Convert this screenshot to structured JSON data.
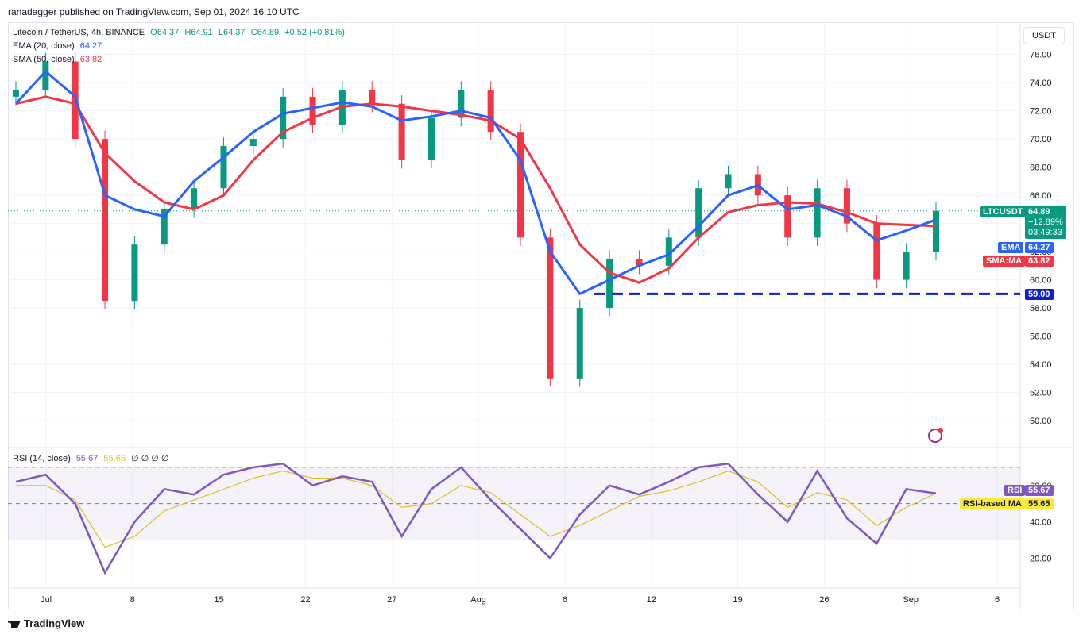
{
  "publisher": "ranadagger published on TradingView.com, Sep 01, 2024 16:10 UTC",
  "legend": {
    "symbol": "Litecoin / TetherUS, 4h, BINANCE",
    "open": "O64.37",
    "high": "H64.91",
    "low": "L64.37",
    "close": "C64.89",
    "change": "+0.52 (+0.81%)",
    "ema_label": "EMA (20, close)",
    "ema_value": "64.27",
    "sma_label": "SMA (50, close)",
    "sma_value": "63.82",
    "rsi_label": "RSI (14, close)",
    "rsi_value": "55.67",
    "rsi_ma_value": "55.65",
    "rsi_extra": "∅ ∅ ∅ ∅"
  },
  "currency": "USDT",
  "tags": {
    "symbol": "LTCUSDT",
    "price": "64.89",
    "pct": "−12.89%",
    "countdown": "03:49:33",
    "ema": "EMA",
    "ema_val": "64.27",
    "sma": "SMA:MA",
    "sma_val": "63.82",
    "support": "59.00",
    "rsi": "RSI",
    "rsi_val": "55.67",
    "rsi_ma": "RSI-based MA",
    "rsi_ma_val": "55.65"
  },
  "footer": "TradingView",
  "colors": {
    "up": "#089981",
    "down": "#f23645",
    "ema": "#2962ff",
    "sma": "#f23645",
    "rsi": "#7e57c2",
    "rsi_ma": "#e0c020",
    "support": "#0a1fd6"
  },
  "chart_data": [
    {
      "type": "line",
      "title": "Litecoin / TetherUS, 4h, BINANCE",
      "x_ticks": [
        "Jul",
        "8",
        "15",
        "22",
        "27",
        "Aug",
        "6",
        "12",
        "19",
        "26",
        "Sep",
        "6"
      ],
      "y_ticks": [
        "50.00",
        "52.00",
        "54.00",
        "56.00",
        "58.00",
        "60.00",
        "62.00",
        "64.00",
        "66.00",
        "68.00",
        "70.00",
        "72.00",
        "74.00",
        "76.00"
      ],
      "ylim": [
        48.2,
        77.5
      ],
      "x": [
        "Jul 1",
        "Jul 3",
        "Jul 5",
        "Jul 6",
        "Jul 8",
        "Jul 10",
        "Jul 12",
        "Jul 14",
        "Jul 16",
        "Jul 18",
        "Jul 20",
        "Jul 22",
        "Jul 24",
        "Jul 26",
        "Jul 28",
        "Jul 30",
        "Aug 1",
        "Aug 3",
        "Aug 5",
        "Aug 7",
        "Aug 9",
        "Aug 11",
        "Aug 13",
        "Aug 15",
        "Aug 17",
        "Aug 19",
        "Aug 21",
        "Aug 23",
        "Aug 25",
        "Aug 27",
        "Aug 29",
        "Sep 1"
      ],
      "series": [
        {
          "name": "LTCUSDT",
          "values": [
            73.5,
            75.5,
            70,
            58.5,
            62.5,
            65,
            66.5,
            69.5,
            70,
            73,
            71,
            73.5,
            72.5,
            68.5,
            71.5,
            73.5,
            70.5,
            63,
            53,
            58,
            61.5,
            61,
            63,
            66.5,
            67.5,
            66,
            63,
            66.5,
            64,
            60,
            62,
            64.89
          ]
        },
        {
          "name": "EMA (20, close)",
          "values": [
            72.5,
            74.8,
            73,
            66,
            65,
            64.5,
            67,
            68.7,
            70.5,
            71.8,
            72.2,
            72.6,
            72.3,
            71.3,
            71.6,
            72,
            71.5,
            68.5,
            62,
            59,
            60,
            61,
            61.8,
            63.8,
            66,
            66.7,
            65,
            65.3,
            64.5,
            62.8,
            63.5,
            64.27
          ]
        },
        {
          "name": "SMA (50, close)",
          "values": [
            72.5,
            73,
            72.5,
            69,
            67,
            65.5,
            65,
            66,
            68.5,
            70.5,
            71.5,
            72.3,
            72.5,
            72.3,
            72,
            71.7,
            71.3,
            70,
            66.5,
            62.5,
            60.5,
            59.8,
            60.8,
            63,
            64.8,
            65.3,
            65.5,
            65.4,
            64.8,
            64,
            63.9,
            63.82
          ]
        }
      ],
      "support_level": 59.0
    },
    {
      "type": "line",
      "title": "RSI (14, close)",
      "y_ticks": [
        "20.00",
        "40.00",
        "60.00"
      ],
      "ylim": [
        4,
        80
      ],
      "bands": [
        30,
        70
      ],
      "x": [
        "Jul 1",
        "Jul 3",
        "Jul 5",
        "Jul 6",
        "Jul 8",
        "Jul 10",
        "Jul 12",
        "Jul 14",
        "Jul 16",
        "Jul 18",
        "Jul 20",
        "Jul 22",
        "Jul 24",
        "Jul 26",
        "Jul 28",
        "Jul 30",
        "Aug 1",
        "Aug 3",
        "Aug 5",
        "Aug 7",
        "Aug 9",
        "Aug 11",
        "Aug 13",
        "Aug 15",
        "Aug 17",
        "Aug 19",
        "Aug 21",
        "Aug 23",
        "Aug 25",
        "Aug 27",
        "Aug 29",
        "Sep 1"
      ],
      "series": [
        {
          "name": "RSI",
          "values": [
            62,
            66,
            50,
            12,
            40,
            58,
            55,
            66,
            70,
            72,
            60,
            65,
            62,
            32,
            58,
            70,
            52,
            36,
            20,
            44,
            60,
            55,
            62,
            70,
            72,
            55,
            40,
            68,
            42,
            28,
            58,
            55.67
          ]
        },
        {
          "name": "RSI-based MA",
          "values": [
            60,
            60,
            52,
            26,
            32,
            46,
            52,
            58,
            64,
            68,
            64,
            64,
            60,
            48,
            50,
            60,
            56,
            44,
            32,
            38,
            46,
            54,
            57,
            62,
            68,
            62,
            48,
            56,
            52,
            38,
            48,
            55.65
          ]
        }
      ]
    }
  ]
}
